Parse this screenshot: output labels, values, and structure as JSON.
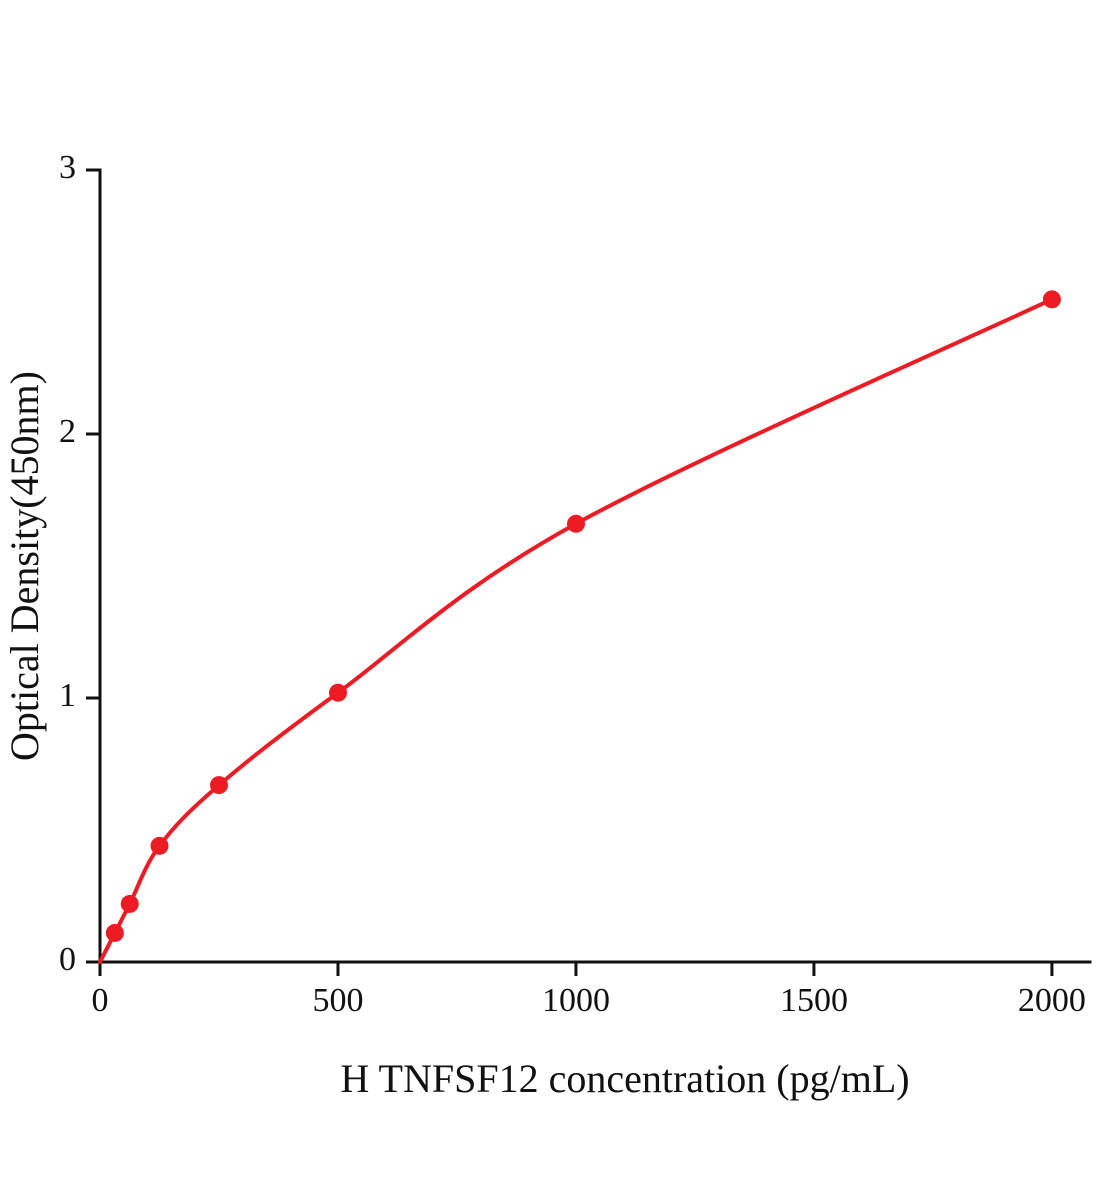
{
  "chart_data": {
    "type": "scatter",
    "title": "",
    "xlabel": "H TNFSF12 concentration (pg/mL)",
    "ylabel": "Optical Density(450nm)",
    "x": [
      31.25,
      62.5,
      125,
      250,
      500,
      1000,
      2000
    ],
    "y": [
      0.11,
      0.22,
      0.44,
      0.67,
      1.02,
      1.66,
      2.51
    ],
    "curve_starts_at_origin": true,
    "xlim": [
      0,
      2080
    ],
    "ylim": [
      0,
      3
    ],
    "xticks": [
      0,
      500,
      1000,
      1500,
      2000
    ],
    "yticks": [
      0,
      1,
      2,
      3
    ],
    "grid": false,
    "legend": null,
    "series_color": "#ed1c24",
    "axis_color": "#111111",
    "marker": "circle",
    "line_style": "smooth-curve"
  }
}
